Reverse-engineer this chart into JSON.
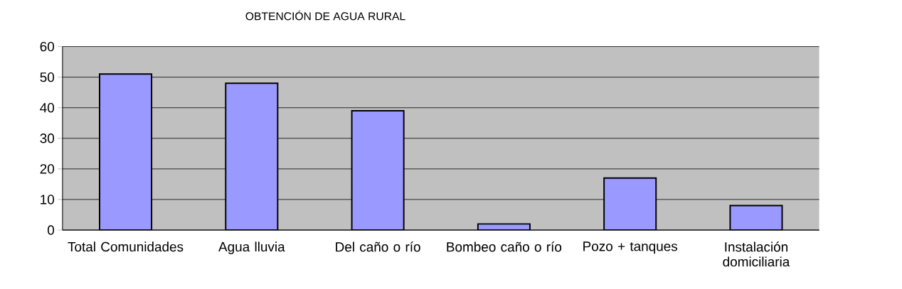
{
  "chart_data": {
    "type": "bar",
    "title": "OBTENCIÓN DE AGUA RURAL",
    "categories": [
      "Total Comunidades",
      "Agua lluvia",
      "Del caño o río",
      "Bombeo caño o río",
      "Pozo + tanques",
      "Instalación domiciliaria"
    ],
    "values": [
      51,
      48,
      39,
      2,
      17,
      8
    ],
    "color": "#9999ff",
    "ylim": [
      0,
      60
    ],
    "yticks": [
      0,
      10,
      20,
      30,
      40,
      50,
      60
    ],
    "grid": "y"
  }
}
